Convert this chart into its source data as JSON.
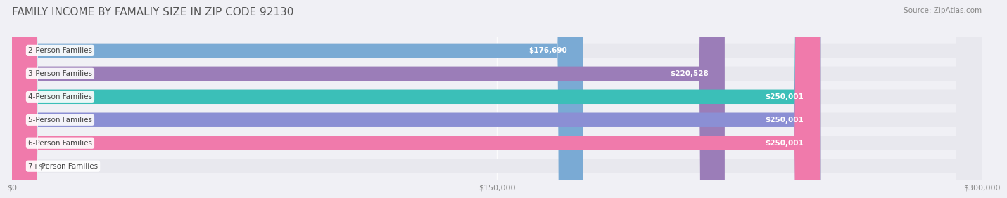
{
  "title": "FAMILY INCOME BY FAMALIY SIZE IN ZIP CODE 92130",
  "source": "Source: ZipAtlas.com",
  "categories": [
    "2-Person Families",
    "3-Person Families",
    "4-Person Families",
    "5-Person Families",
    "6-Person Families",
    "7+ Person Families"
  ],
  "values": [
    176690,
    220528,
    250001,
    250001,
    250001,
    0
  ],
  "labels": [
    "$176,690",
    "$220,528",
    "$250,001",
    "$250,001",
    "$250,001",
    "$0"
  ],
  "bar_colors": [
    "#7aaad4",
    "#9b7db8",
    "#3bbfb8",
    "#8b8fd4",
    "#f07aab",
    "#f5c9a0"
  ],
  "bar_bg_color": "#e8e8ee",
  "xlim": [
    0,
    300000
  ],
  "xticks": [
    0,
    150000,
    300000
  ],
  "xtick_labels": [
    "$0",
    "$150,000",
    "$300,000"
  ],
  "background_color": "#f0f0f5",
  "title_fontsize": 11,
  "bar_height": 0.62,
  "label_inside_color": "#ffffff",
  "label_outside_color": "#666666"
}
